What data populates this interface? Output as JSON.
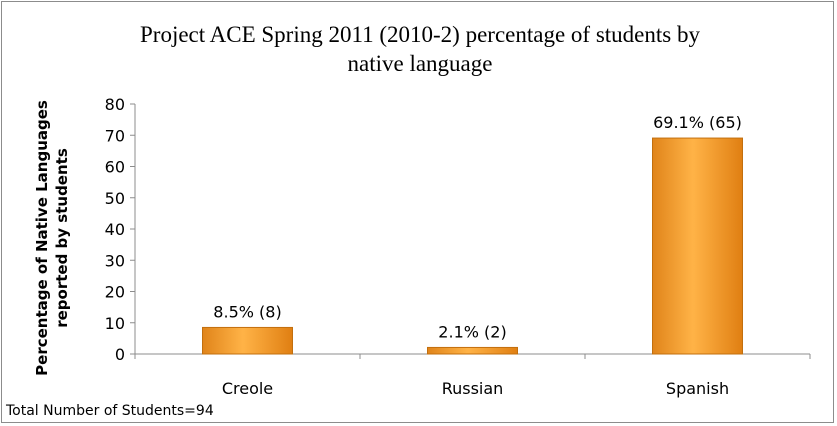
{
  "chart_data": {
    "type": "bar",
    "title": "Project ACE Spring 2011 (2010-2) percentage of students by native language",
    "ylabel": "Percentage of Native Languages reported by  students",
    "xlabel": "",
    "categories": [
      "Creole",
      "Russian",
      "Spanish"
    ],
    "values": [
      8.5,
      2.1,
      69.1
    ],
    "data_labels": [
      "8.5% (8)",
      "2.1% (2)",
      "69.1% (65)"
    ],
    "ylim": [
      0,
      80
    ],
    "yticks": [
      0,
      10,
      20,
      30,
      40,
      50,
      60,
      70,
      80
    ],
    "grid": false,
    "legend": "none",
    "bar_color": "#f39a2a",
    "bar_edge_color": "#c26f0e"
  },
  "footnote": "Total Number of Students=94"
}
